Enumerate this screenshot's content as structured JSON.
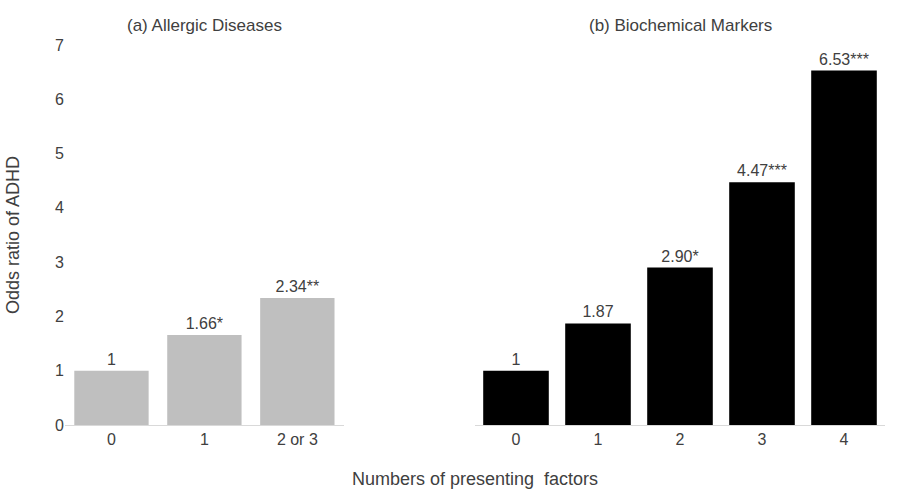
{
  "chart_data": [
    {
      "type": "bar",
      "title": "(a) Allergic Diseases",
      "ylabel": "Odds ratio of ADHD",
      "xlabel": "Numbers of presenting  factors",
      "categories": [
        "0",
        "1",
        "2 or 3"
      ],
      "values": [
        1,
        1.66,
        2.34
      ],
      "value_labels": [
        "1",
        "1.66*",
        "2.34**"
      ],
      "color": "#bfbfbf",
      "ylim": [
        0,
        7
      ],
      "yticks": [
        0,
        1,
        2,
        3,
        4,
        5,
        6,
        7
      ],
      "grid": false,
      "data_labels": true
    },
    {
      "type": "bar",
      "title": "(b) Biochemical Markers",
      "categories": [
        "0",
        "1",
        "2",
        "3",
        "4"
      ],
      "values": [
        1,
        1.87,
        2.9,
        4.47,
        6.53
      ],
      "value_labels": [
        "1",
        "1.87",
        "2.90*",
        "4.47***",
        "6.53***"
      ],
      "color": "#000000",
      "ylim": [
        0,
        7
      ],
      "yticks": [
        0,
        1,
        2,
        3,
        4,
        5,
        6,
        7
      ],
      "grid": false,
      "data_labels": true
    }
  ]
}
